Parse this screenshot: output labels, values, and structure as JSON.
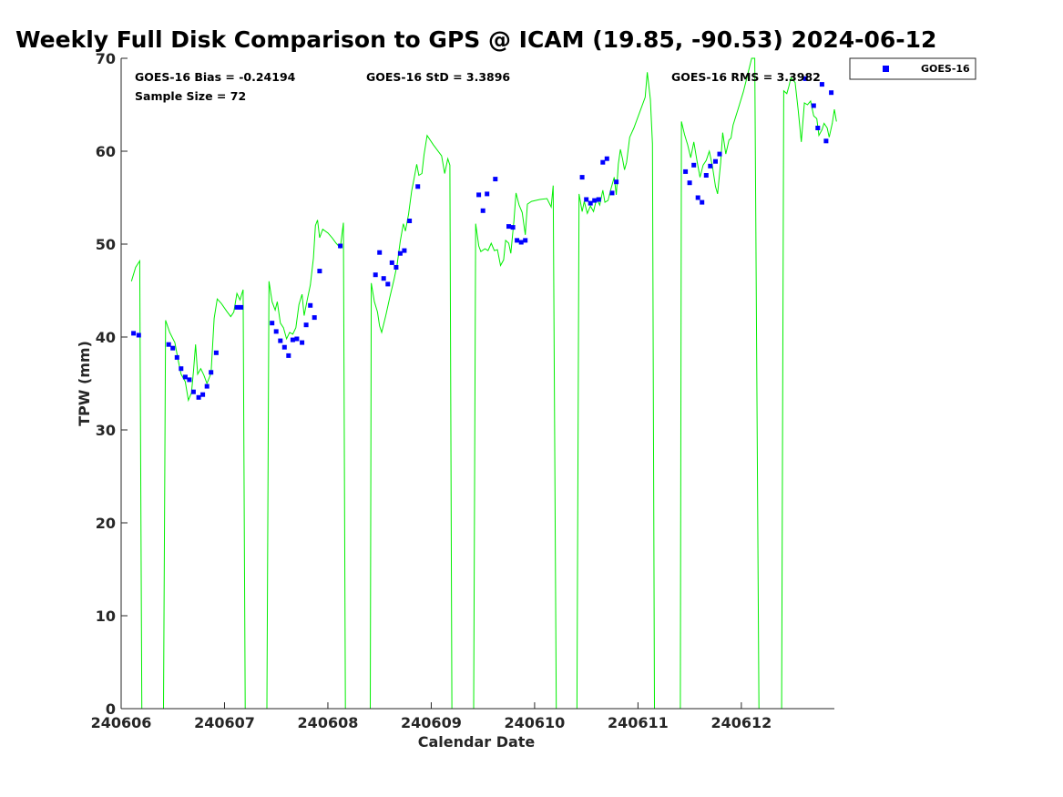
{
  "chart_data": {
    "type": "scatter",
    "title": "Weekly Full Disk Comparison to GPS @ ICAM (19.85, -90.53) 2024-06-12",
    "xlabel": "Calendar Date",
    "ylabel": "TPW (mm)",
    "xlim": [
      240606.0,
      240612.9
    ],
    "ylim": [
      0,
      70
    ],
    "x_ticks": [
      240606,
      240607,
      240608,
      240609,
      240610,
      240611,
      240612
    ],
    "x_tick_labels": [
      "240606",
      "240607",
      "240608",
      "240609",
      "240610",
      "240611",
      "240612"
    ],
    "y_ticks": [
      0,
      10,
      20,
      30,
      40,
      50,
      60,
      70
    ],
    "y_tick_labels": [
      "0",
      "10",
      "20",
      "30",
      "40",
      "50",
      "60",
      "70"
    ],
    "grid": false,
    "legend_location": "top-right outside",
    "stats": {
      "bias": "GOES-16 Bias = -0.24194",
      "std": "GOES-16 StD = 3.3896",
      "rms": "GOES-16 RMS = 3.3982",
      "sample": "Sample Size = 72"
    },
    "series": [
      {
        "name": "GOES-16",
        "marker": "square",
        "color": "#0000ff",
        "points": [
          [
            240606.12,
            40.4
          ],
          [
            240606.17,
            40.2
          ],
          [
            240606.46,
            39.2
          ],
          [
            240606.5,
            38.8
          ],
          [
            240606.54,
            37.8
          ],
          [
            240606.58,
            36.6
          ],
          [
            240606.62,
            35.7
          ],
          [
            240606.66,
            35.4
          ],
          [
            240606.7,
            34.1
          ],
          [
            240606.75,
            33.5
          ],
          [
            240606.79,
            33.8
          ],
          [
            240606.83,
            34.7
          ],
          [
            240606.87,
            36.2
          ],
          [
            240606.92,
            38.3
          ],
          [
            240607.12,
            43.2
          ],
          [
            240607.16,
            43.2
          ],
          [
            240607.46,
            41.5
          ],
          [
            240607.5,
            40.6
          ],
          [
            240607.54,
            39.6
          ],
          [
            240607.58,
            38.9
          ],
          [
            240607.62,
            38.0
          ],
          [
            240607.66,
            39.7
          ],
          [
            240607.7,
            39.8
          ],
          [
            240607.75,
            39.4
          ],
          [
            240607.79,
            41.3
          ],
          [
            240607.83,
            43.4
          ],
          [
            240607.87,
            42.1
          ],
          [
            240607.92,
            47.1
          ],
          [
            240608.12,
            49.8
          ],
          [
            240608.46,
            46.7
          ],
          [
            240608.5,
            49.1
          ],
          [
            240608.54,
            46.3
          ],
          [
            240608.58,
            45.7
          ],
          [
            240608.62,
            48.0
          ],
          [
            240608.66,
            47.5
          ],
          [
            240608.7,
            49.0
          ],
          [
            240608.74,
            49.3
          ],
          [
            240608.79,
            52.5
          ],
          [
            240608.87,
            56.2
          ],
          [
            240609.46,
            55.3
          ],
          [
            240609.5,
            53.6
          ],
          [
            240609.54,
            55.4
          ],
          [
            240609.62,
            57.0
          ],
          [
            240609.75,
            51.9
          ],
          [
            240609.79,
            51.8
          ],
          [
            240609.83,
            50.4
          ],
          [
            240609.87,
            50.2
          ],
          [
            240609.91,
            50.4
          ],
          [
            240610.46,
            57.2
          ],
          [
            240610.5,
            54.8
          ],
          [
            240610.54,
            54.4
          ],
          [
            240610.58,
            54.7
          ],
          [
            240610.62,
            54.8
          ],
          [
            240610.66,
            58.8
          ],
          [
            240610.7,
            59.2
          ],
          [
            240610.75,
            55.5
          ],
          [
            240610.79,
            56.7
          ],
          [
            240611.46,
            57.8
          ],
          [
            240611.5,
            56.6
          ],
          [
            240611.54,
            58.5
          ],
          [
            240611.58,
            55.0
          ],
          [
            240611.62,
            54.5
          ],
          [
            240611.66,
            57.4
          ],
          [
            240611.7,
            58.4
          ],
          [
            240611.75,
            58.9
          ],
          [
            240611.79,
            59.7
          ],
          [
            240612.62,
            67.8
          ],
          [
            240612.7,
            64.9
          ],
          [
            240612.74,
            62.5
          ],
          [
            240612.78,
            67.2
          ],
          [
            240612.82,
            61.1
          ],
          [
            240612.87,
            66.3
          ]
        ]
      },
      {
        "color": "#00ee00",
        "marker": "line",
        "points": [
          [
            240606.1,
            46.0
          ],
          [
            240606.14,
            47.5
          ],
          [
            240606.18,
            48.2
          ],
          [
            240606.2,
            0
          ],
          [
            240606.41,
            0
          ],
          [
            240606.43,
            41.8
          ],
          [
            240606.47,
            40.5
          ],
          [
            240606.52,
            39.4
          ],
          [
            240606.55,
            37.6
          ],
          [
            240606.58,
            36.0
          ],
          [
            240606.62,
            35.2
          ],
          [
            240606.65,
            33.2
          ],
          [
            240606.68,
            34.0
          ],
          [
            240606.7,
            36.3
          ],
          [
            240606.72,
            39.2
          ],
          [
            240606.74,
            36.0
          ],
          [
            240606.77,
            36.6
          ],
          [
            240606.8,
            35.9
          ],
          [
            240606.83,
            35.0
          ],
          [
            240606.87,
            36.1
          ],
          [
            240606.9,
            42.0
          ],
          [
            240606.93,
            44.1
          ],
          [
            240606.97,
            43.6
          ],
          [
            240607.02,
            42.8
          ],
          [
            240607.06,
            42.2
          ],
          [
            240607.09,
            42.7
          ],
          [
            240607.12,
            44.7
          ],
          [
            240607.15,
            44.0
          ],
          [
            240607.18,
            45.1
          ],
          [
            240607.2,
            0
          ],
          [
            240607.41,
            0
          ],
          [
            240607.43,
            46.0
          ],
          [
            240607.46,
            43.8
          ],
          [
            240607.49,
            42.9
          ],
          [
            240607.51,
            43.8
          ],
          [
            240607.54,
            41.5
          ],
          [
            240607.57,
            41.0
          ],
          [
            240607.6,
            39.8
          ],
          [
            240607.63,
            40.5
          ],
          [
            240607.66,
            40.3
          ],
          [
            240607.69,
            41.0
          ],
          [
            240607.72,
            43.5
          ],
          [
            240607.75,
            44.6
          ],
          [
            240607.77,
            42.3
          ],
          [
            240607.8,
            44.0
          ],
          [
            240607.83,
            45.6
          ],
          [
            240607.86,
            48.5
          ],
          [
            240607.88,
            52.0
          ],
          [
            240607.9,
            52.6
          ],
          [
            240607.92,
            50.7
          ],
          [
            240607.95,
            51.6
          ],
          [
            240608.0,
            51.2
          ],
          [
            240608.04,
            50.7
          ],
          [
            240608.08,
            50.1
          ],
          [
            240608.12,
            49.6
          ],
          [
            240608.15,
            52.3
          ],
          [
            240608.17,
            0
          ],
          [
            240608.41,
            0
          ],
          [
            240608.42,
            45.8
          ],
          [
            240608.45,
            43.8
          ],
          [
            240608.48,
            42.7
          ],
          [
            240608.5,
            41.2
          ],
          [
            240608.52,
            40.5
          ],
          [
            240608.56,
            42.3
          ],
          [
            240608.6,
            44.3
          ],
          [
            240608.64,
            46.2
          ],
          [
            240608.67,
            47.8
          ],
          [
            240608.7,
            50.3
          ],
          [
            240608.73,
            52.2
          ],
          [
            240608.75,
            51.4
          ],
          [
            240608.78,
            53.2
          ],
          [
            240608.81,
            55.7
          ],
          [
            240608.83,
            56.8
          ],
          [
            240608.86,
            58.6
          ],
          [
            240608.88,
            57.4
          ],
          [
            240608.91,
            57.6
          ],
          [
            240608.93,
            59.6
          ],
          [
            240608.96,
            61.7
          ],
          [
            240609.02,
            60.7
          ],
          [
            240609.1,
            59.5
          ],
          [
            240609.13,
            57.6
          ],
          [
            240609.16,
            59.2
          ],
          [
            240609.18,
            58.5
          ],
          [
            240609.2,
            0
          ],
          [
            240609.41,
            0
          ],
          [
            240609.43,
            52.2
          ],
          [
            240609.46,
            49.8
          ],
          [
            240609.48,
            49.2
          ],
          [
            240609.52,
            49.5
          ],
          [
            240609.55,
            49.3
          ],
          [
            240609.58,
            50.1
          ],
          [
            240609.61,
            49.3
          ],
          [
            240609.64,
            49.4
          ],
          [
            240609.67,
            47.7
          ],
          [
            240609.7,
            48.3
          ],
          [
            240609.72,
            50.4
          ],
          [
            240609.75,
            50.1
          ],
          [
            240609.77,
            49.0
          ],
          [
            240609.8,
            52.5
          ],
          [
            240609.82,
            55.5
          ],
          [
            240609.85,
            54.2
          ],
          [
            240609.88,
            53.4
          ],
          [
            240609.91,
            51.0
          ],
          [
            240609.93,
            54.3
          ],
          [
            240609.97,
            54.6
          ],
          [
            240610.05,
            54.8
          ],
          [
            240610.12,
            54.9
          ],
          [
            240610.16,
            54.0
          ],
          [
            240610.18,
            56.3
          ],
          [
            240610.21,
            0
          ],
          [
            240610.41,
            0
          ],
          [
            240610.43,
            55.4
          ],
          [
            240610.46,
            53.5
          ],
          [
            240610.48,
            54.6
          ],
          [
            240610.51,
            53.3
          ],
          [
            240610.54,
            54.1
          ],
          [
            240610.57,
            53.5
          ],
          [
            240610.6,
            54.9
          ],
          [
            240610.63,
            54.2
          ],
          [
            240610.66,
            55.8
          ],
          [
            240610.68,
            54.5
          ],
          [
            240610.71,
            54.7
          ],
          [
            240610.74,
            56.0
          ],
          [
            240610.77,
            57.2
          ],
          [
            240610.79,
            55.3
          ],
          [
            240610.81,
            58.6
          ],
          [
            240610.83,
            60.2
          ],
          [
            240610.85,
            59.2
          ],
          [
            240610.87,
            58.0
          ],
          [
            240610.89,
            58.8
          ],
          [
            240610.92,
            61.5
          ],
          [
            240610.96,
            62.5
          ],
          [
            240611.02,
            64.3
          ],
          [
            240611.07,
            65.8
          ],
          [
            240611.09,
            68.5
          ],
          [
            240611.12,
            65.6
          ],
          [
            240611.14,
            60.8
          ],
          [
            240611.16,
            0
          ],
          [
            240611.41,
            0
          ],
          [
            240611.42,
            63.2
          ],
          [
            240611.45,
            61.8
          ],
          [
            240611.48,
            60.7
          ],
          [
            240611.51,
            59.3
          ],
          [
            240611.54,
            61.0
          ],
          [
            240611.57,
            59.0
          ],
          [
            240611.6,
            57.2
          ],
          [
            240611.63,
            58.5
          ],
          [
            240611.66,
            59.0
          ],
          [
            240611.69,
            60.0
          ],
          [
            240611.72,
            58.4
          ],
          [
            240611.75,
            56.2
          ],
          [
            240611.77,
            55.4
          ],
          [
            240611.8,
            58.8
          ],
          [
            240611.82,
            62.0
          ],
          [
            240611.85,
            59.7
          ],
          [
            240611.88,
            61.2
          ],
          [
            240611.9,
            61.4
          ],
          [
            240611.92,
            62.8
          ],
          [
            240611.97,
            64.6
          ],
          [
            240612.02,
            66.4
          ],
          [
            240612.06,
            68.2
          ],
          [
            240612.1,
            70.0
          ],
          [
            240612.13,
            70.0
          ],
          [
            240612.17,
            0
          ],
          [
            240612.39,
            0
          ],
          [
            240612.41,
            66.5
          ],
          [
            240612.44,
            66.2
          ],
          [
            240612.46,
            67.0
          ],
          [
            240612.48,
            67.9
          ],
          [
            240612.52,
            67.4
          ],
          [
            240612.55,
            64.4
          ],
          [
            240612.58,
            61.0
          ],
          [
            240612.61,
            65.2
          ],
          [
            240612.64,
            65.0
          ],
          [
            240612.67,
            65.4
          ],
          [
            240612.7,
            63.8
          ],
          [
            240612.73,
            63.5
          ],
          [
            240612.75,
            61.7
          ],
          [
            240612.78,
            62.3
          ],
          [
            240612.8,
            63.0
          ],
          [
            240612.83,
            62.5
          ],
          [
            240612.85,
            61.5
          ],
          [
            240612.88,
            63.0
          ],
          [
            240612.9,
            64.5
          ],
          [
            240612.92,
            63.2
          ]
        ]
      }
    ]
  }
}
